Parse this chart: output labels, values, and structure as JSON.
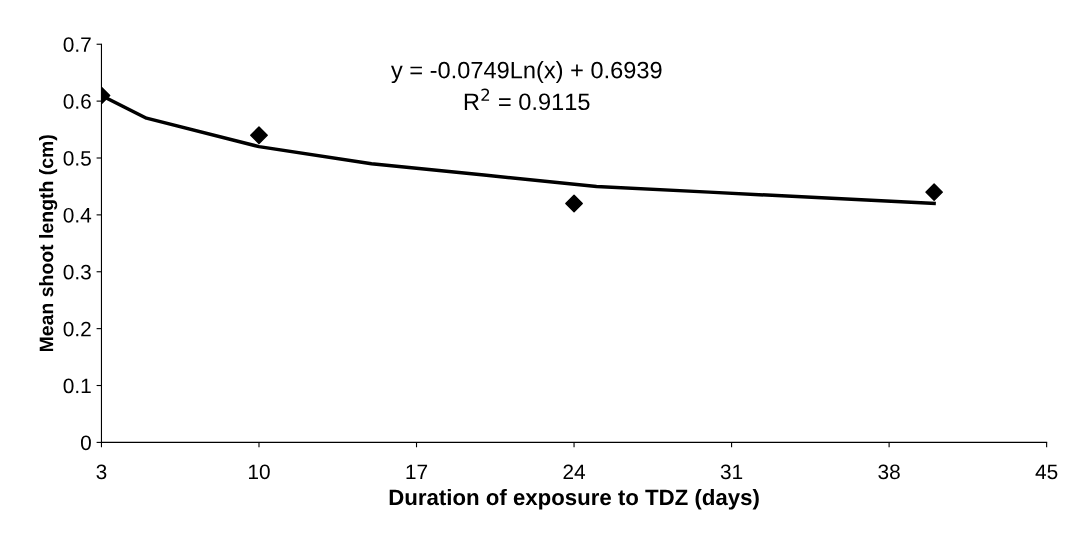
{
  "chart_data": {
    "type": "scatter",
    "xlabel": "Duration of exposure to TDZ (days)",
    "ylabel": "Mean shoot length (cm)",
    "xlim": [
      3,
      45
    ],
    "xticks": [
      3,
      10,
      17,
      24,
      31,
      38,
      45
    ],
    "ylim": [
      0,
      0.7
    ],
    "yticks": [
      0,
      0.1,
      0.2,
      0.3,
      0.4,
      0.5,
      0.6,
      0.7
    ],
    "grid": false,
    "legend": false,
    "series": [
      {
        "color": "#000000",
        "marker": "diamond",
        "x": [
          3,
          10,
          24,
          40
        ],
        "values": [
          0.61,
          0.54,
          0.42,
          0.44
        ]
      },
      {
        "type": "line",
        "color": "#000000",
        "marker": "none",
        "line_style": "solid",
        "x": [
          3,
          5,
          10,
          15,
          20,
          25,
          30,
          35,
          40
        ],
        "values": [
          0.61,
          0.57,
          0.52,
          0.49,
          0.47,
          0.45,
          0.44,
          0.43,
          0.42
        ]
      }
    ],
    "annotations": [
      "y = -0.0749Ln(x) + 0.6939",
      "R$^{2}$ = 0.9115"
    ]
  }
}
